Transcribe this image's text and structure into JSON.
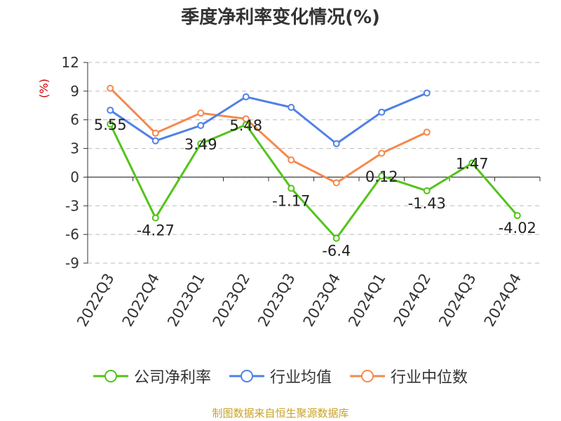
{
  "chart_data": {
    "type": "line",
    "title": "季度净利率变化情况(%)",
    "ylabel": "(%)",
    "xlabel": "",
    "categories": [
      "2022Q3",
      "2022Q4",
      "2023Q1",
      "2023Q2",
      "2023Q3",
      "2023Q4",
      "2024Q1",
      "2024Q2",
      "2024Q3",
      "2024Q4"
    ],
    "ylim": [
      -9,
      12
    ],
    "yticks": [
      12,
      9,
      6,
      3,
      0,
      -3,
      -6,
      -9
    ],
    "grid": true,
    "legend": "bottom",
    "series": [
      {
        "name": "公司净利率",
        "color": "#52c41a",
        "values": [
          5.55,
          -4.27,
          3.49,
          5.48,
          -1.17,
          -6.4,
          0.12,
          -1.43,
          1.47,
          -4.02
        ],
        "labels": [
          "5.55",
          "-4.27",
          "3.49",
          "5.48",
          "-1.17",
          "-6.4",
          "0.12",
          "-1.43",
          "1.47",
          "-4.02"
        ]
      },
      {
        "name": "行业均值",
        "color": "#4f81e6",
        "values": [
          7.0,
          3.8,
          5.4,
          8.4,
          7.3,
          3.5,
          6.8,
          8.8,
          null,
          null
        ]
      },
      {
        "name": "行业中位数",
        "color": "#f5894d",
        "values": [
          9.3,
          4.6,
          6.7,
          6.1,
          1.8,
          -0.6,
          2.5,
          4.7,
          null,
          null
        ]
      }
    ]
  },
  "source": "制图数据来自恒生聚源数据库"
}
